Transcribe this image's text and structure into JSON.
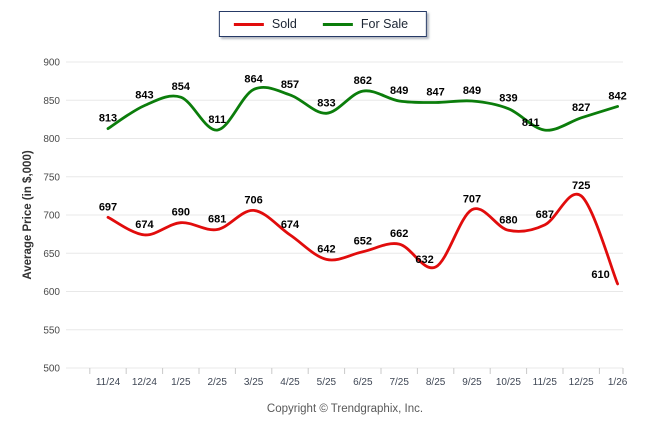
{
  "chart_data": {
    "type": "line",
    "x": [
      "11/24",
      "12/24",
      "1/25",
      "2/25",
      "3/25",
      "4/25",
      "5/25",
      "6/25",
      "7/25",
      "8/25",
      "9/25",
      "10/25",
      "11/25",
      "12/25",
      "1/26"
    ],
    "series": [
      {
        "name": "Sold",
        "color": "#e10c0c",
        "values": [
          697,
          674,
          690,
          681,
          706,
          674,
          642,
          652,
          662,
          632,
          707,
          680,
          687,
          725,
          610
        ]
      },
      {
        "name": "For Sale",
        "color": "#0b7d0b",
        "values": [
          813,
          843,
          854,
          811,
          864,
          857,
          833,
          862,
          849,
          847,
          849,
          839,
          811,
          827,
          842
        ]
      }
    ],
    "title": "",
    "xlabel": "",
    "ylabel": "Average Price (in $,000)",
    "ylim": [
      500,
      900
    ],
    "ytick_step": 50,
    "grid": "horizontal",
    "legend_position": "top-center",
    "smooth": true,
    "data_labels": true
  },
  "footer": {
    "copyright": "Copyright © Trendgraphix, Inc."
  }
}
